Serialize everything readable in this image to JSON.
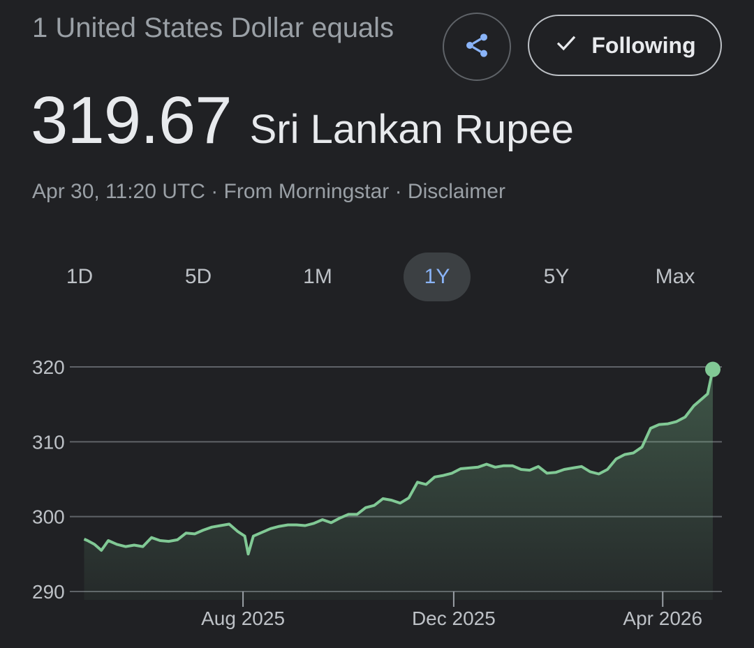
{
  "header": {
    "subtitle": "1 United States Dollar equals",
    "rate_value": "319.67",
    "rate_currency": "Sri Lankan Rupee",
    "meta": "Apr 30, 11:20 UTC · From Morningstar · Disclaimer"
  },
  "actions": {
    "share_icon": "share-icon",
    "follow_label": "Following",
    "follow_icon": "check-icon"
  },
  "tabs": [
    {
      "label": "1D",
      "active": false
    },
    {
      "label": "5D",
      "active": false
    },
    {
      "label": "1M",
      "active": false
    },
    {
      "label": "1Y",
      "active": true
    },
    {
      "label": "5Y",
      "active": false
    },
    {
      "label": "Max",
      "active": false
    }
  ],
  "colors": {
    "background": "#202124",
    "line": "#81c995",
    "active_tab": "#8ab4f8"
  },
  "chart_data": {
    "type": "area",
    "ylim": [
      290,
      320
    ],
    "yticks": [
      "320",
      "310",
      "300",
      "290"
    ],
    "xticks": [
      "Aug 2025",
      "Dec 2025",
      "Apr 2026"
    ],
    "xlim": [
      "2025-04-30",
      "2026-04-30"
    ],
    "grid": true,
    "last_value": 319.67,
    "series": [
      {
        "x": [
          "2025-05-01",
          "2025-05-03",
          "2025-05-07",
          "2025-05-11",
          "2025-05-15",
          "2025-05-20",
          "2025-05-25",
          "2025-05-30",
          "2025-06-04",
          "2025-06-09",
          "2025-06-14",
          "2025-06-19",
          "2025-06-24",
          "2025-06-29",
          "2025-07-04",
          "2025-07-09",
          "2025-07-14",
          "2025-07-19",
          "2025-07-24",
          "2025-07-29",
          "2025-08-02",
          "2025-08-04",
          "2025-08-07",
          "2025-08-12",
          "2025-08-17",
          "2025-08-22",
          "2025-08-27",
          "2025-09-01",
          "2025-09-06",
          "2025-09-11",
          "2025-09-16",
          "2025-09-21",
          "2025-09-26",
          "2025-10-01",
          "2025-10-06",
          "2025-10-11",
          "2025-10-16",
          "2025-10-21",
          "2025-10-26",
          "2025-10-31",
          "2025-11-05",
          "2025-11-10",
          "2025-11-15",
          "2025-11-20",
          "2025-11-25",
          "2025-11-30",
          "2025-12-05",
          "2025-12-10",
          "2025-12-15",
          "2025-12-20",
          "2025-12-25",
          "2025-12-30",
          "2026-01-04",
          "2026-01-09",
          "2026-01-14",
          "2026-01-19",
          "2026-01-24",
          "2026-01-29",
          "2026-02-03",
          "2026-02-08",
          "2026-02-13",
          "2026-02-18",
          "2026-02-23",
          "2026-02-28",
          "2026-03-05",
          "2026-03-10",
          "2026-03-15",
          "2026-03-20",
          "2026-03-25",
          "2026-03-30",
          "2026-04-04",
          "2026-04-09",
          "2026-04-14",
          "2026-04-19",
          "2026-04-24",
          "2026-04-27",
          "2026-04-30"
        ],
        "values": [
          297.0,
          296.8,
          296.3,
          295.5,
          296.8,
          296.3,
          296.0,
          296.2,
          296.0,
          297.2,
          296.8,
          296.7,
          296.9,
          297.8,
          297.7,
          298.2,
          298.6,
          298.8,
          299.0,
          298.0,
          297.4,
          295.0,
          297.4,
          297.9,
          298.4,
          298.7,
          298.9,
          298.9,
          298.8,
          299.1,
          299.6,
          299.2,
          299.8,
          300.3,
          300.3,
          301.2,
          301.5,
          302.4,
          302.2,
          301.8,
          302.5,
          304.6,
          304.3,
          305.3,
          305.5,
          305.8,
          306.4,
          306.5,
          306.6,
          307.0,
          306.6,
          306.8,
          306.8,
          306.3,
          306.2,
          306.7,
          305.8,
          305.9,
          306.3,
          306.5,
          306.7,
          306.0,
          305.7,
          306.3,
          307.7,
          308.3,
          308.5,
          309.3,
          311.8,
          312.3,
          312.4,
          312.7,
          313.3,
          314.8,
          315.8,
          316.4,
          319.67
        ]
      }
    ]
  }
}
